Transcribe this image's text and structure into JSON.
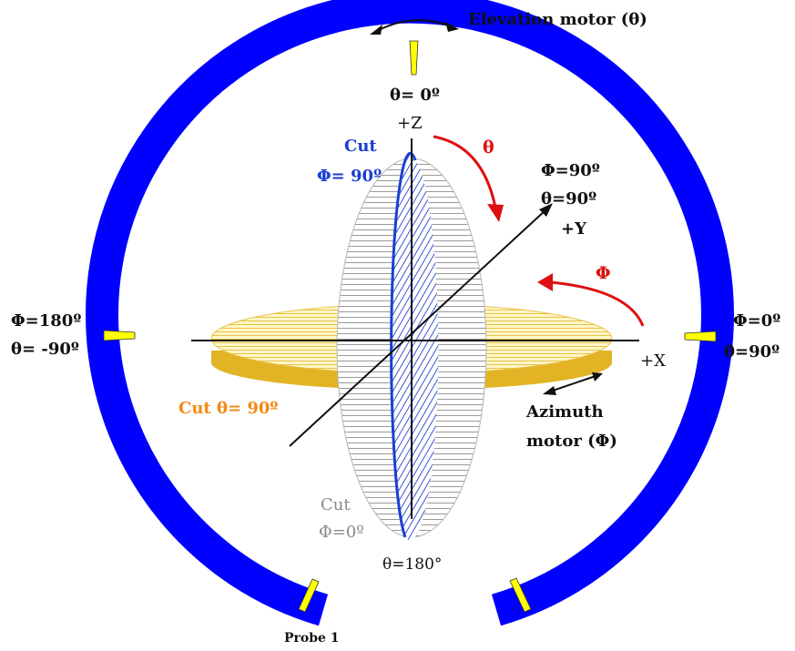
{
  "colors": {
    "ring": "#0000ff",
    "marker": "#ffff00",
    "red_arrow": "#dd1111",
    "phi90_cut": "#1a3fcf",
    "theta90_cut": "#e8b11a",
    "theta90_label": "#f28a14",
    "phi0_label": "#8a8a8a",
    "text": "#111111"
  },
  "labels": {
    "elevation_motor": "Elevation motor (θ)",
    "theta_0": "θ= 0º",
    "plus_z": "+Z",
    "cut_phi90_title": "Cut",
    "cut_phi90_value": "Φ= 90º",
    "theta_arrow": "θ",
    "phi90": "Φ=90º",
    "theta90": "θ=90º",
    "plus_y": "+Y",
    "phi_arrow": "Φ",
    "left_phi": "Φ=180º",
    "left_theta": "θ= -90º",
    "right_phi": "Φ=0º",
    "right_theta": "θ=90º",
    "plus_x": "+X",
    "cut_theta_text": "Cut  θ= 90º",
    "azimuth_line1": "Azimuth",
    "azimuth_line2": "motor (Φ)",
    "cut_phi0_title": "Cut",
    "cut_phi0_value": "Φ=0º",
    "theta_180": "θ=180°",
    "probe": "Probe 1"
  }
}
